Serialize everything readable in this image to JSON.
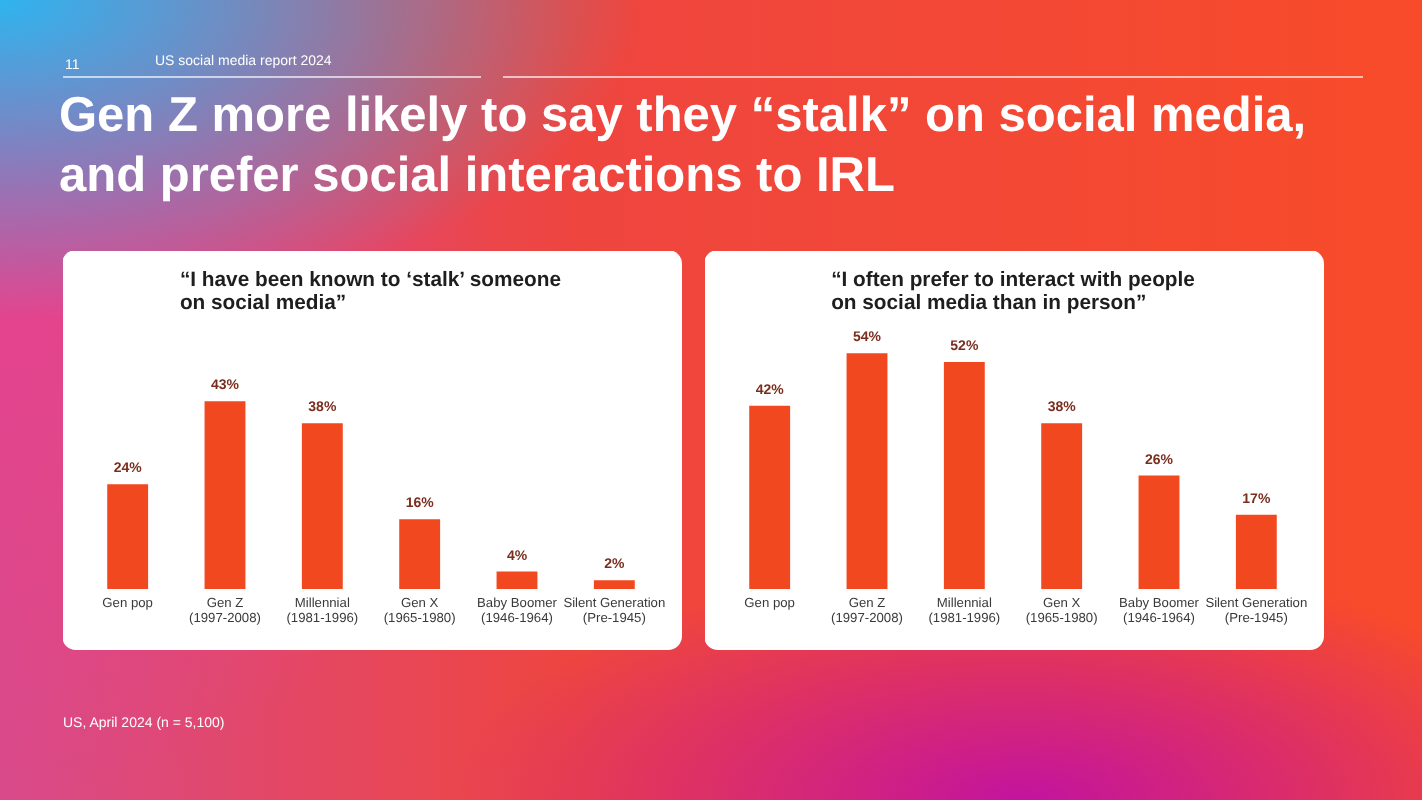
{
  "chart_data": [
    {
      "type": "other",
      "title": "Gen Z more likely to say they “stalk” on social media,\nand prefer social interactions to IRL",
      "annotations": [
        "11",
        "US social media report 2024",
        "US, April 2024 (n = 5,100)"
      ]
    },
    {
      "type": "bar",
      "title": "“I have been known to ‘stalk’ someone\non social media”",
      "categories": [
        "Gen pop",
        "Gen Z\n(1997-2008)",
        "Millennial\n(1981-1996)",
        "Gen X\n(1965-1980)",
        "Baby Boomer\n(1946-1964)",
        "Silent Generation\n(Pre-1945)"
      ],
      "values": [
        24,
        43,
        38,
        16,
        4,
        2
      ],
      "value_labels": [
        "24%",
        "43%",
        "38%",
        "16%",
        "4%",
        "2%"
      ],
      "color": "#f2481f",
      "tick_labels": "x"
    },
    {
      "type": "bar",
      "title": "“I often prefer to interact with people\non social media than in person”",
      "categories": [
        "Gen pop",
        "Gen Z\n(1997-2008)",
        "Millennial\n(1981-1996)",
        "Gen X\n(1965-1980)",
        "Baby Boomer\n(1946-1964)",
        "Silent Generation\n(Pre-1945)"
      ],
      "values": [
        42,
        54,
        52,
        38,
        26,
        17
      ],
      "value_labels": [
        "42%",
        "54%",
        "52%",
        "38%",
        "26%",
        "17%"
      ],
      "color": "#f2481f",
      "tick_labels": "x"
    }
  ]
}
